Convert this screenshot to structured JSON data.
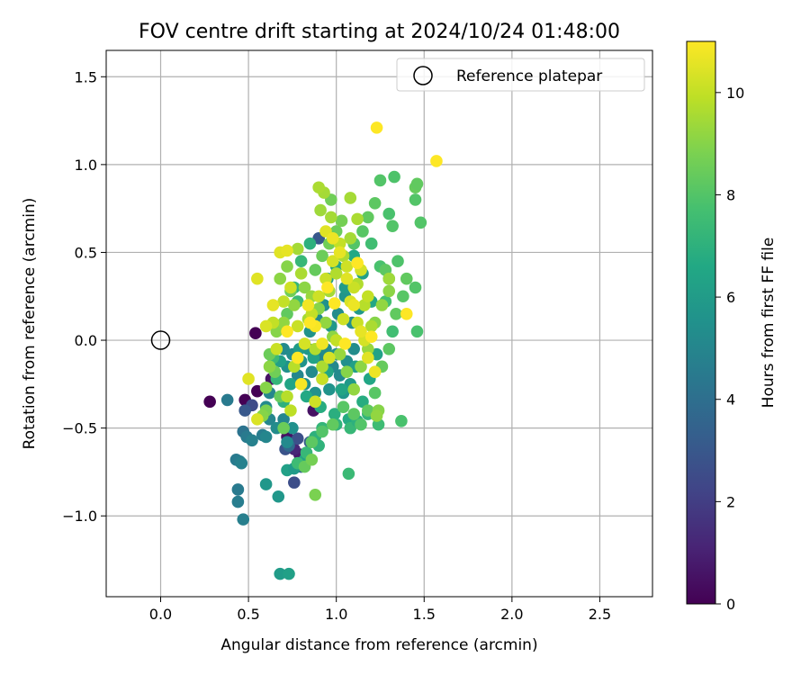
{
  "chart_data": {
    "type": "scatter",
    "title": "FOV centre drift starting at 2024/10/24 01:48:00",
    "xlabel": "Angular distance from reference (arcmin)",
    "ylabel": "Rotation from reference (arcmin)",
    "xlim": [
      -0.31,
      2.8
    ],
    "ylim": [
      -1.46,
      1.65
    ],
    "xticks": [
      0.0,
      0.5,
      1.0,
      1.5,
      2.0,
      2.5
    ],
    "xtick_labels": [
      "0.0",
      "0.5",
      "1.0",
      "1.5",
      "2.0",
      "2.5"
    ],
    "yticks": [
      -1.0,
      -0.5,
      0.0,
      0.5,
      1.0,
      1.5
    ],
    "ytick_labels": [
      "−1.0",
      "−0.5",
      "0.0",
      "0.5",
      "1.0",
      "1.5"
    ],
    "grid": true,
    "legend": {
      "position": "top-right",
      "entries": [
        "Reference platepar"
      ]
    },
    "colormap": "viridis",
    "colorbar": {
      "label": "Hours from first FF file",
      "range": [
        0,
        11
      ],
      "ticks": [
        0,
        2,
        4,
        6,
        8,
        10
      ],
      "tick_labels": [
        "0",
        "2",
        "4",
        "6",
        "8",
        "10"
      ]
    },
    "reference_point": {
      "x": 0.0,
      "y": 0.0,
      "label": "Reference platepar"
    },
    "points": [
      [
        0.28,
        -0.35,
        0.0
      ],
      [
        0.54,
        0.04,
        0.0
      ],
      [
        0.55,
        -0.29,
        0.0
      ],
      [
        0.48,
        -0.34,
        0.0
      ],
      [
        0.63,
        -0.22,
        0.5
      ],
      [
        0.72,
        -0.55,
        0.5
      ],
      [
        0.87,
        -0.4,
        0.5
      ],
      [
        0.79,
        -0.65,
        0.8
      ],
      [
        0.76,
        -0.62,
        1.2
      ],
      [
        0.52,
        -0.37,
        2.5
      ],
      [
        0.48,
        -0.4,
        3.0
      ],
      [
        0.71,
        -0.62,
        2.8
      ],
      [
        0.76,
        -0.81,
        2.6
      ],
      [
        0.78,
        -0.56,
        2.7
      ],
      [
        0.85,
        -0.58,
        3.2
      ],
      [
        0.9,
        0.58,
        3.0
      ],
      [
        0.8,
        -0.72,
        3.5
      ],
      [
        0.73,
        -0.6,
        3.8
      ],
      [
        0.38,
        -0.34,
        4.5
      ],
      [
        0.43,
        -0.68,
        4.5
      ],
      [
        0.45,
        -0.69,
        4.6
      ],
      [
        0.46,
        -0.7,
        4.8
      ],
      [
        0.44,
        -0.85,
        4.5
      ],
      [
        0.44,
        -0.92,
        4.6
      ],
      [
        0.47,
        -1.02,
        4.7
      ],
      [
        0.47,
        -0.52,
        4.2
      ],
      [
        0.49,
        -0.55,
        4.5
      ],
      [
        0.52,
        -0.57,
        4.8
      ],
      [
        0.58,
        -0.54,
        4.6
      ],
      [
        0.6,
        -0.55,
        5.0
      ],
      [
        0.62,
        -0.45,
        5.0
      ],
      [
        0.6,
        -0.38,
        5.2
      ],
      [
        0.62,
        -0.3,
        5.0
      ],
      [
        0.66,
        -0.5,
        5.3
      ],
      [
        0.7,
        -0.45,
        5.0
      ],
      [
        0.72,
        -0.58,
        5.2
      ],
      [
        0.75,
        -0.5,
        5.5
      ],
      [
        0.67,
        -0.89,
        5.8
      ],
      [
        0.6,
        -0.82,
        5.8
      ],
      [
        0.68,
        -1.33,
        6.0
      ],
      [
        0.73,
        -1.33,
        6.2
      ],
      [
        0.72,
        -0.74,
        6.2
      ],
      [
        0.76,
        -0.73,
        6.0
      ],
      [
        0.78,
        -0.7,
        6.5
      ],
      [
        0.82,
        -0.68,
        6.3
      ],
      [
        0.7,
        -0.05,
        5.2
      ],
      [
        0.72,
        -0.15,
        5.5
      ],
      [
        0.75,
        -0.08,
        5.3
      ],
      [
        0.78,
        -0.2,
        5.0
      ],
      [
        0.8,
        -0.12,
        5.6
      ],
      [
        0.82,
        -0.25,
        5.4
      ],
      [
        0.84,
        -0.05,
        5.8
      ],
      [
        0.86,
        -0.18,
        5.2
      ],
      [
        0.88,
        -0.3,
        5.5
      ],
      [
        0.9,
        -0.1,
        5.0
      ],
      [
        0.92,
        -0.22,
        5.7
      ],
      [
        0.94,
        -0.05,
        5.3
      ],
      [
        0.96,
        -0.28,
        5.6
      ],
      [
        0.98,
        -0.15,
        5.1
      ],
      [
        1.0,
        -0.08,
        5.5
      ],
      [
        1.02,
        -0.2,
        5.2
      ],
      [
        1.04,
        -0.3,
        5.8
      ],
      [
        1.06,
        -0.12,
        5.4
      ],
      [
        1.08,
        -0.25,
        5.9
      ],
      [
        1.1,
        -0.05,
        5.3
      ],
      [
        0.68,
        -0.12,
        6.2
      ],
      [
        0.74,
        -0.25,
        6.4
      ],
      [
        0.79,
        -0.05,
        6.0
      ],
      [
        0.83,
        -0.32,
        6.6
      ],
      [
        0.87,
        -0.1,
        6.3
      ],
      [
        0.91,
        -0.38,
        6.8
      ],
      [
        0.95,
        -0.18,
        6.5
      ],
      [
        0.99,
        -0.42,
        6.9
      ],
      [
        1.03,
        -0.28,
        6.4
      ],
      [
        1.07,
        -0.45,
        6.7
      ],
      [
        1.11,
        -0.15,
        6.2
      ],
      [
        1.15,
        -0.35,
        6.8
      ],
      [
        1.19,
        -0.22,
        6.5
      ],
      [
        1.23,
        -0.08,
        6.3
      ],
      [
        0.85,
        0.05,
        5.6
      ],
      [
        0.89,
        0.12,
        5.2
      ],
      [
        0.93,
        0.2,
        5.5
      ],
      [
        0.97,
        0.08,
        5.8
      ],
      [
        1.01,
        0.15,
        5.3
      ],
      [
        1.05,
        0.25,
        5.7
      ],
      [
        1.09,
        0.1,
        5.4
      ],
      [
        1.13,
        0.18,
        5.9
      ],
      [
        0.95,
        0.35,
        6.1
      ],
      [
        1.0,
        0.42,
        6.4
      ],
      [
        1.05,
        0.3,
        6.0
      ],
      [
        1.1,
        0.48,
        6.6
      ],
      [
        1.15,
        0.38,
        6.2
      ],
      [
        1.2,
        0.22,
        6.5
      ],
      [
        0.88,
        -0.55,
        7.0
      ],
      [
        0.92,
        -0.5,
        7.2
      ],
      [
        1.0,
        -0.48,
        7.1
      ],
      [
        1.08,
        -0.5,
        7.3
      ],
      [
        1.12,
        -0.46,
        7.0
      ],
      [
        1.18,
        -0.42,
        7.2
      ],
      [
        1.07,
        -0.76,
        7.4
      ],
      [
        0.9,
        -0.6,
        7.1
      ],
      [
        0.83,
        -0.64,
        7.3
      ],
      [
        0.78,
        -0.7,
        7.5
      ],
      [
        0.66,
        -0.22,
        7.2
      ],
      [
        0.64,
        -0.1,
        7.4
      ],
      [
        0.7,
        -0.35,
        7.0
      ],
      [
        0.76,
        0.3,
        7.2
      ],
      [
        0.8,
        0.45,
        7.3
      ],
      [
        0.85,
        0.55,
        7.0
      ],
      [
        0.78,
        0.22,
        7.4
      ],
      [
        1.2,
        0.55,
        7.6
      ],
      [
        1.25,
        0.42,
        7.8
      ],
      [
        1.3,
        0.35,
        7.5
      ],
      [
        1.35,
        0.45,
        7.9
      ],
      [
        1.28,
        0.22,
        7.7
      ],
      [
        1.32,
        0.05,
        7.6
      ],
      [
        1.37,
        -0.46,
        7.8
      ],
      [
        1.24,
        -0.48,
        7.5
      ],
      [
        1.45,
        0.3,
        8.0
      ],
      [
        1.46,
        0.05,
        7.8
      ],
      [
        1.48,
        0.67,
        8.0
      ],
      [
        1.45,
        0.8,
        8.0
      ],
      [
        1.33,
        0.93,
        7.9
      ],
      [
        1.25,
        0.91,
        8.0
      ],
      [
        1.3,
        0.72,
        7.8
      ],
      [
        1.32,
        0.65,
        8.0
      ],
      [
        1.22,
        0.78,
        8.2
      ],
      [
        1.15,
        0.62,
        8.1
      ],
      [
        1.1,
        0.55,
        8.0
      ],
      [
        1.18,
        0.7,
        8.3
      ],
      [
        1.4,
        0.35,
        8.3
      ],
      [
        1.45,
        0.87,
        8.4
      ],
      [
        1.46,
        0.89,
        8.3
      ],
      [
        1.28,
        0.4,
        8.2
      ],
      [
        1.38,
        0.25,
        8.1
      ],
      [
        1.34,
        0.15,
        8.3
      ],
      [
        1.3,
        -0.05,
        8.2
      ],
      [
        1.26,
        -0.15,
        8.4
      ],
      [
        1.22,
        -0.3,
        8.1
      ],
      [
        1.18,
        -0.4,
        8.3
      ],
      [
        1.14,
        -0.48,
        8.0
      ],
      [
        1.1,
        -0.42,
        8.2
      ],
      [
        1.04,
        -0.38,
        8.1
      ],
      [
        0.98,
        -0.48,
        8.3
      ],
      [
        0.92,
        -0.52,
        8.0
      ],
      [
        0.86,
        -0.58,
        8.2
      ],
      [
        0.82,
        -0.72,
        8.4
      ],
      [
        0.7,
        -0.5,
        8.5
      ],
      [
        0.68,
        -0.32,
        8.4
      ],
      [
        0.65,
        -0.18,
        8.6
      ],
      [
        0.62,
        -0.08,
        8.5
      ],
      [
        0.72,
        0.15,
        8.3
      ],
      [
        0.74,
        0.28,
        8.6
      ],
      [
        0.88,
        0.4,
        8.4
      ],
      [
        0.92,
        0.48,
        8.5
      ],
      [
        0.96,
        0.55,
        8.6
      ],
      [
        1.0,
        0.62,
        8.5
      ],
      [
        1.03,
        0.68,
        8.7
      ],
      [
        0.97,
        0.8,
        8.6
      ],
      [
        0.88,
        -0.88,
        8.8
      ],
      [
        0.86,
        -0.68,
        8.7
      ],
      [
        0.6,
        -0.4,
        8.8
      ],
      [
        0.58,
        -0.43,
        9.0
      ],
      [
        0.6,
        -0.27,
        9.0
      ],
      [
        0.62,
        -0.15,
        9.1
      ],
      [
        0.66,
        0.05,
        9.0
      ],
      [
        0.7,
        0.1,
        9.2
      ],
      [
        0.68,
        0.35,
        9.1
      ],
      [
        0.72,
        0.42,
        9.0
      ],
      [
        0.76,
        0.2,
        9.2
      ],
      [
        0.82,
        0.3,
        9.1
      ],
      [
        0.86,
        0.25,
        9.3
      ],
      [
        0.9,
        0.18,
        9.0
      ],
      [
        0.94,
        0.1,
        9.2
      ],
      [
        0.98,
        0.02,
        9.1
      ],
      [
        1.02,
        -0.08,
        9.3
      ],
      [
        1.06,
        -0.18,
        9.0
      ],
      [
        1.1,
        -0.28,
        9.2
      ],
      [
        1.14,
        -0.15,
        9.1
      ],
      [
        1.18,
        -0.05,
        9.3
      ],
      [
        1.22,
        0.1,
        9.0
      ],
      [
        1.26,
        0.2,
        9.2
      ],
      [
        1.3,
        0.28,
        9.1
      ],
      [
        1.24,
        -0.4,
        9.0
      ],
      [
        1.23,
        -0.43,
        9.2
      ],
      [
        1.3,
        0.35,
        9.4
      ],
      [
        0.93,
        0.84,
        9.5
      ],
      [
        0.9,
        0.87,
        9.6
      ],
      [
        0.97,
        0.7,
        9.5
      ],
      [
        0.91,
        0.74,
        9.4
      ],
      [
        1.08,
        0.81,
        9.5
      ],
      [
        1.12,
        0.69,
        9.6
      ],
      [
        0.78,
        0.52,
        9.5
      ],
      [
        0.8,
        0.38,
        9.6
      ],
      [
        0.84,
        0.12,
        9.5
      ],
      [
        0.88,
        -0.05,
        9.7
      ],
      [
        0.92,
        -0.15,
        9.6
      ],
      [
        0.96,
        0.28,
        9.5
      ],
      [
        1.0,
        0.38,
        9.7
      ],
      [
        1.04,
        0.48,
        9.6
      ],
      [
        1.08,
        0.58,
        9.5
      ],
      [
        1.12,
        0.32,
        9.7
      ],
      [
        1.16,
        0.2,
        9.8
      ],
      [
        1.2,
        0.08,
        9.6
      ],
      [
        0.72,
        -0.32,
        9.8
      ],
      [
        0.74,
        -0.4,
        9.9
      ],
      [
        0.76,
        -0.15,
        9.8
      ],
      [
        0.64,
        0.1,
        10.0
      ],
      [
        0.66,
        -0.05,
        10.1
      ],
      [
        0.7,
        0.22,
        10.0
      ],
      [
        0.74,
        0.3,
        10.2
      ],
      [
        0.78,
        0.08,
        10.1
      ],
      [
        0.82,
        -0.02,
        10.3
      ],
      [
        0.86,
        0.15,
        10.0
      ],
      [
        0.9,
        0.25,
        10.2
      ],
      [
        0.94,
        0.35,
        10.1
      ],
      [
        0.98,
        0.45,
        10.3
      ],
      [
        1.02,
        0.55,
        10.0
      ],
      [
        1.06,
        0.42,
        10.2
      ],
      [
        1.1,
        0.3,
        10.1
      ],
      [
        1.14,
        0.4,
        10.3
      ],
      [
        1.18,
        0.25,
        10.0
      ],
      [
        0.88,
        -0.35,
        10.2
      ],
      [
        0.92,
        -0.22,
        10.1
      ],
      [
        0.96,
        -0.1,
        10.3
      ],
      [
        1.0,
        0.0,
        10.0
      ],
      [
        1.04,
        0.12,
        10.2
      ],
      [
        1.08,
        0.22,
        10.4
      ],
      [
        1.12,
        0.1,
        10.1
      ],
      [
        1.16,
        0.0,
        10.3
      ],
      [
        0.55,
        -0.45,
        10.4
      ],
      [
        0.5,
        -0.22,
        10.5
      ],
      [
        0.55,
        0.35,
        10.5
      ],
      [
        0.6,
        0.08,
        10.4
      ],
      [
        0.64,
        0.2,
        10.6
      ],
      [
        0.68,
        0.5,
        10.5
      ],
      [
        0.72,
        0.51,
        10.6
      ],
      [
        0.94,
        0.62,
        10.5
      ],
      [
        0.98,
        0.58,
        10.7
      ],
      [
        1.02,
        0.5,
        10.6
      ],
      [
        1.06,
        0.35,
        10.5
      ],
      [
        1.1,
        0.2,
        10.7
      ],
      [
        1.14,
        0.05,
        10.6
      ],
      [
        1.18,
        -0.1,
        10.5
      ],
      [
        1.22,
        -0.18,
        10.7
      ],
      [
        0.84,
        0.2,
        10.8
      ],
      [
        0.88,
        0.08,
        10.9
      ],
      [
        0.92,
        -0.02,
        10.8
      ],
      [
        0.8,
        -0.25,
        10.9
      ],
      [
        1.23,
        1.21,
        11.0
      ],
      [
        1.57,
        1.02,
        11.0
      ],
      [
        1.4,
        0.15,
        11.0
      ],
      [
        1.2,
        0.02,
        11.0
      ],
      [
        0.95,
        0.3,
        11.0
      ],
      [
        0.85,
        0.1,
        11.0
      ],
      [
        0.78,
        -0.1,
        11.0
      ],
      [
        0.72,
        0.05,
        11.0
      ],
      [
        1.05,
        -0.02,
        11.0
      ],
      [
        1.12,
        0.44,
        11.0
      ],
      [
        0.99,
        0.21,
        11.0
      ]
    ]
  }
}
